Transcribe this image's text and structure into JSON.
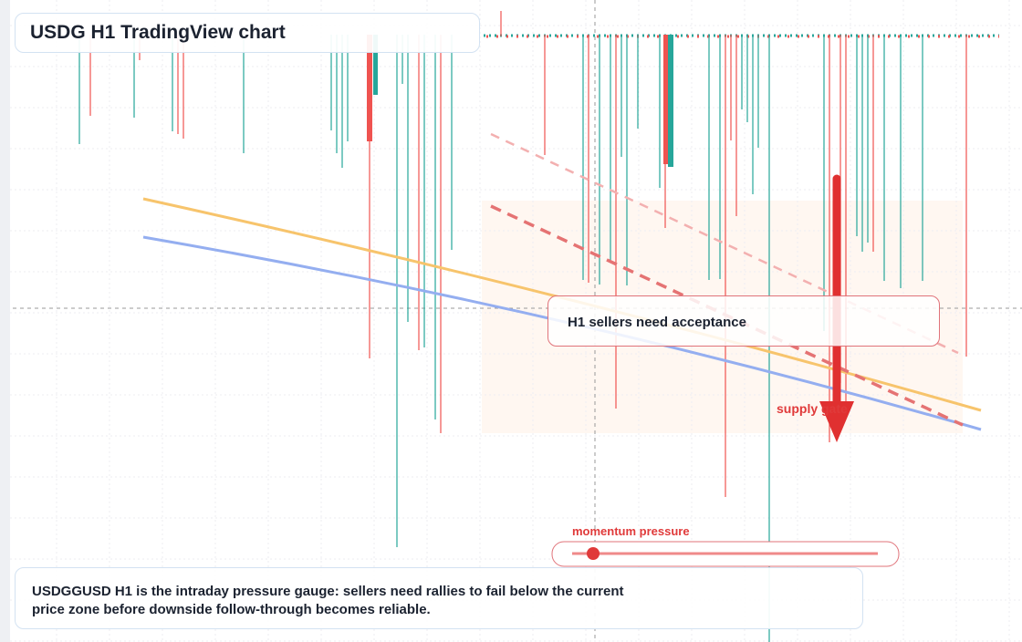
{
  "header": {
    "title": "USDG H1 TradingView chart"
  },
  "annotations": {
    "acceptance": "H1 sellers need acceptance",
    "supply": "supply gate",
    "momentum": "momentum pressure"
  },
  "caption": "USDGGUSD H1 is the intraday pressure gauge: sellers need rallies to fail below the current price zone before downside follow-through becomes reliable."
}
